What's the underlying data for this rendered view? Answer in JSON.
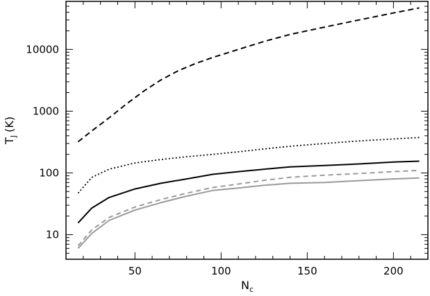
{
  "chart_data": {
    "type": "line",
    "xlabel": "N",
    "xlabel_sub": "c",
    "ylabel": "T",
    "ylabel_sub": "J",
    "ylabel_unit": "(K)",
    "xlim": [
      10,
      220
    ],
    "ylim": [
      4,
      60000
    ],
    "yscale": "log",
    "x_ticks": [
      50,
      100,
      150,
      200
    ],
    "x_tick_labels": [
      "50",
      "100",
      "150",
      "200"
    ],
    "y_ticks": [
      10,
      100,
      1000,
      10000
    ],
    "y_tick_labels": [
      "10",
      "100",
      "1000",
      "10000"
    ],
    "grid": false,
    "series": [
      {
        "color": "#000000",
        "dash": "8,5",
        "width": 2,
        "points": [
          [
            17,
            320
          ],
          [
            25,
            480
          ],
          [
            35,
            780
          ],
          [
            45,
            1300
          ],
          [
            55,
            2100
          ],
          [
            65,
            3200
          ],
          [
            75,
            4500
          ],
          [
            85,
            5900
          ],
          [
            95,
            7400
          ],
          [
            110,
            10000
          ],
          [
            125,
            13500
          ],
          [
            140,
            17500
          ],
          [
            160,
            23000
          ],
          [
            180,
            30000
          ],
          [
            200,
            39000
          ],
          [
            215,
            47000
          ]
        ]
      },
      {
        "color": "#000000",
        "dash": "2,3",
        "width": 1.8,
        "points": [
          [
            17,
            47
          ],
          [
            25,
            85
          ],
          [
            35,
            115
          ],
          [
            50,
            145
          ],
          [
            65,
            165
          ],
          [
            80,
            183
          ],
          [
            95,
            200
          ],
          [
            110,
            220
          ],
          [
            125,
            245
          ],
          [
            140,
            270
          ],
          [
            160,
            300
          ],
          [
            180,
            330
          ],
          [
            200,
            355
          ],
          [
            215,
            375
          ]
        ]
      },
      {
        "color": "#000000",
        "dash": "",
        "width": 2,
        "points": [
          [
            17,
            15.5
          ],
          [
            25,
            27
          ],
          [
            35,
            40
          ],
          [
            50,
            55
          ],
          [
            65,
            68
          ],
          [
            80,
            80
          ],
          [
            95,
            95
          ],
          [
            110,
            105
          ],
          [
            125,
            115
          ],
          [
            140,
            125
          ],
          [
            160,
            132
          ],
          [
            180,
            140
          ],
          [
            200,
            150
          ],
          [
            215,
            155
          ]
        ]
      },
      {
        "color": "#999999",
        "dash": "7,5",
        "width": 2,
        "points": [
          [
            17,
            6.6
          ],
          [
            25,
            12
          ],
          [
            35,
            19
          ],
          [
            50,
            28
          ],
          [
            65,
            37
          ],
          [
            80,
            47
          ],
          [
            95,
            58
          ],
          [
            110,
            66
          ],
          [
            125,
            76
          ],
          [
            140,
            85
          ],
          [
            160,
            92
          ],
          [
            180,
            98
          ],
          [
            200,
            105
          ],
          [
            215,
            110
          ]
        ]
      },
      {
        "color": "#999999",
        "dash": "",
        "width": 2,
        "points": [
          [
            17,
            6.0
          ],
          [
            25,
            10.5
          ],
          [
            35,
            17
          ],
          [
            50,
            25
          ],
          [
            65,
            33
          ],
          [
            80,
            42
          ],
          [
            95,
            52
          ],
          [
            110,
            57
          ],
          [
            125,
            63
          ],
          [
            140,
            68
          ],
          [
            160,
            70
          ],
          [
            180,
            75
          ],
          [
            200,
            80
          ],
          [
            215,
            83
          ]
        ]
      }
    ]
  }
}
